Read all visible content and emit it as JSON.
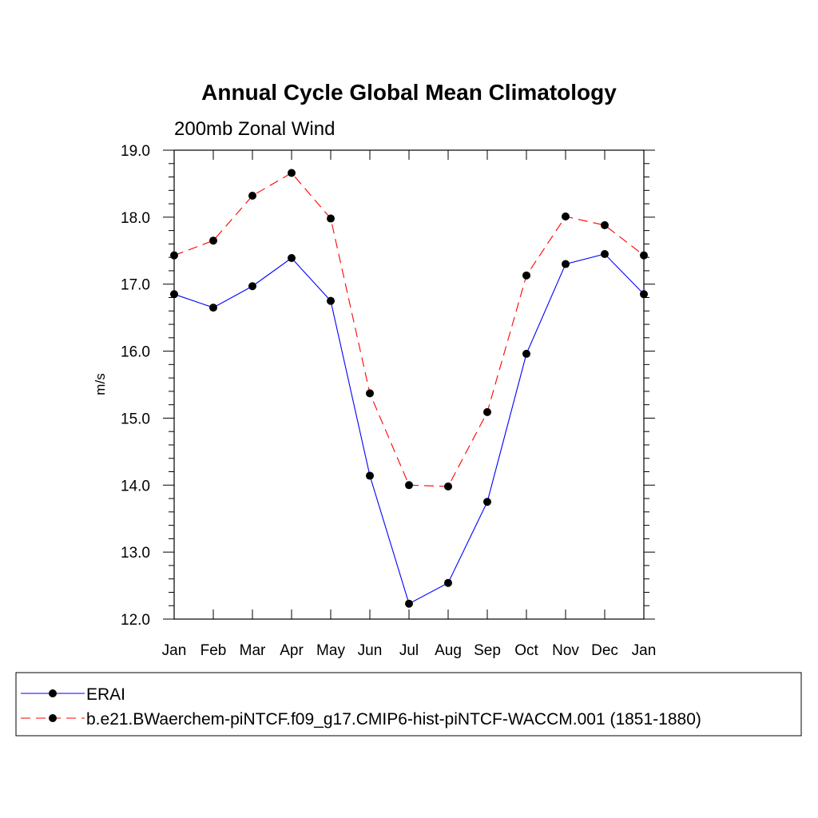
{
  "chart_data": {
    "type": "line",
    "title": "Annual Cycle Global Mean Climatology",
    "subtitle": "200mb Zonal Wind",
    "ylabel": "m/s",
    "xlabel": "",
    "categories": [
      "Jan",
      "Feb",
      "Mar",
      "Apr",
      "May",
      "Jun",
      "Jul",
      "Aug",
      "Sep",
      "Oct",
      "Nov",
      "Dec",
      "Jan"
    ],
    "ylim": [
      12.0,
      19.0
    ],
    "yticks": [
      "12.0",
      "13.0",
      "14.0",
      "15.0",
      "16.0",
      "17.0",
      "18.0",
      "19.0"
    ],
    "series": [
      {
        "name": "ERAI",
        "color": "#0000ff",
        "style": "solid",
        "values": [
          16.85,
          16.65,
          16.97,
          17.39,
          16.75,
          14.14,
          12.23,
          12.54,
          13.75,
          15.96,
          17.3,
          17.45,
          16.85
        ]
      },
      {
        "name": "b.e21.BWaerchem-piNTCF.f09_g17.CMIP6-hist-piNTCF-WACCM.001 (1851-1880)",
        "color": "#ff0000",
        "style": "dashed",
        "values": [
          17.43,
          17.65,
          18.32,
          18.66,
          17.98,
          15.37,
          14.0,
          13.98,
          15.09,
          17.13,
          18.01,
          17.88,
          17.43
        ]
      }
    ],
    "grid": false,
    "legend_position": "bottom"
  }
}
